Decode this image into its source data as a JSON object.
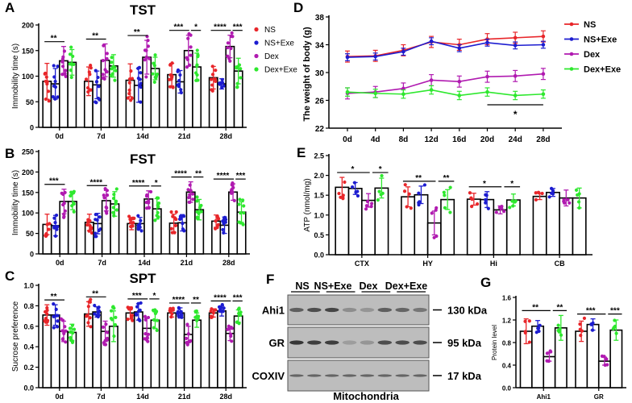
{
  "groups": [
    "NS",
    "NS+Exe",
    "Dex",
    "Dex+Exe"
  ],
  "colors": {
    "NS": "#e8262a",
    "NS+Exe": "#1c1cd0",
    "Dex": "#b01ab0",
    "Dex+Exe": "#2ee82e"
  },
  "panel_letters": [
    "A",
    "B",
    "C",
    "D",
    "E",
    "F",
    "G"
  ],
  "chart_data": [
    {
      "id": "A",
      "type": "bar",
      "title": "TST",
      "xlabel": "",
      "ylabel": "Immobility time (s)",
      "ylim": [
        0,
        200
      ],
      "yticks": [
        0,
        50,
        100,
        150,
        200
      ],
      "categories": [
        "0d",
        "7d",
        "14d",
        "21d",
        "28d"
      ],
      "legend": "right",
      "series": [
        {
          "name": "NS",
          "values": [
            90,
            90,
            92,
            103,
            97
          ],
          "sd": [
            35,
            28,
            32,
            22,
            22
          ]
        },
        {
          "name": "NS+Exe",
          "values": [
            85,
            83,
            82,
            89,
            85
          ],
          "sd": [
            30,
            27,
            33,
            22,
            10
          ]
        },
        {
          "name": "Dex",
          "values": [
            130,
            131,
            137,
            150,
            158
          ],
          "sd": [
            28,
            32,
            33,
            30,
            22
          ]
        },
        {
          "name": "Dex+Exe",
          "values": [
            127,
            120,
            115,
            118,
            110
          ],
          "sd": [
            25,
            22,
            22,
            27,
            25
          ]
        }
      ],
      "significance": [
        [
          "**",
          ""
        ],
        [
          "**",
          ""
        ],
        [
          "**",
          ""
        ],
        [
          "***",
          "*"
        ],
        [
          "****",
          "***"
        ]
      ]
    },
    {
      "id": "B",
      "type": "bar",
      "title": "FST",
      "xlabel": "",
      "ylabel": "Immobility time (s)",
      "ylim": [
        0,
        250
      ],
      "yticks": [
        0,
        50,
        100,
        150,
        200,
        250
      ],
      "categories": [
        "0d",
        "7d",
        "14d",
        "21d",
        "28d"
      ],
      "series": [
        {
          "name": "NS",
          "values": [
            72,
            77,
            74,
            75,
            80
          ],
          "sd": [
            25,
            20,
            15,
            22,
            15
          ]
        },
        {
          "name": "NS+Exe",
          "values": [
            69,
            74,
            74,
            76,
            70
          ],
          "sd": [
            25,
            25,
            15,
            20,
            20
          ]
        },
        {
          "name": "Dex",
          "values": [
            128,
            130,
            134,
            151,
            151
          ],
          "sd": [
            30,
            25,
            20,
            25,
            20
          ]
        },
        {
          "name": "Dex+Exe",
          "values": [
            128,
            122,
            110,
            108,
            102
          ],
          "sd": [
            20,
            30,
            25,
            25,
            25
          ]
        }
      ],
      "significance": [
        [
          "***",
          ""
        ],
        [
          "****",
          ""
        ],
        [
          "****",
          "*"
        ],
        [
          "****",
          "**"
        ],
        [
          "****",
          "***"
        ]
      ]
    },
    {
      "id": "C",
      "type": "bar",
      "title": "SPT",
      "xlabel": "",
      "ylabel": "Sucrose preference",
      "ylim": [
        0,
        1.0
      ],
      "yticks": [
        "0.0",
        "0.2",
        "0.4",
        "0.6",
        "0.8",
        "1.0"
      ],
      "categories": [
        "0d",
        "7d",
        "14d",
        "21d",
        "28d"
      ],
      "series": [
        {
          "name": "NS",
          "values": [
            0.71,
            0.72,
            0.73,
            0.73,
            0.73
          ],
          "sd": [
            0.1,
            0.12,
            0.06,
            0.04,
            0.04
          ]
        },
        {
          "name": "NS+Exe",
          "values": [
            0.71,
            0.74,
            0.74,
            0.73,
            0.75
          ],
          "sd": [
            0.1,
            0.05,
            0.08,
            0.05,
            0.05
          ]
        },
        {
          "name": "Dex",
          "values": [
            0.55,
            0.55,
            0.58,
            0.52,
            0.53
          ],
          "sd": [
            0.1,
            0.1,
            0.1,
            0.08,
            0.07
          ]
        },
        {
          "name": "Dex+Exe",
          "values": [
            0.54,
            0.6,
            0.66,
            0.66,
            0.7
          ],
          "sd": [
            0.08,
            0.15,
            0.08,
            0.07,
            0.06
          ]
        }
      ],
      "significance": [
        [
          "**",
          ""
        ],
        [
          "**",
          ""
        ],
        [
          "***",
          "*"
        ],
        [
          "****",
          "**"
        ],
        [
          "****",
          "***"
        ]
      ]
    },
    {
      "id": "D",
      "type": "line",
      "title": "",
      "xlabel": "",
      "ylabel": "The weight of body (g)",
      "ylim": [
        22,
        38
      ],
      "yticks": [
        22,
        26,
        30,
        34,
        38
      ],
      "x": [
        "0d",
        "4d",
        "8d",
        "12d",
        "16d",
        "20d",
        "24d",
        "28d"
      ],
      "legend": "right",
      "series": [
        {
          "name": "NS",
          "values": [
            32.3,
            32.4,
            33.2,
            34.4,
            34.0,
            34.8,
            35.0,
            35.2
          ],
          "sd": 0.8
        },
        {
          "name": "NS+Exe",
          "values": [
            32.2,
            32.3,
            33.0,
            34.5,
            33.5,
            34.3,
            33.9,
            34.0
          ],
          "sd": 0.5
        },
        {
          "name": "Dex",
          "values": [
            27.0,
            27.2,
            27.7,
            28.9,
            28.7,
            29.4,
            29.5,
            29.8
          ],
          "sd": 0.8
        },
        {
          "name": "Dex+Exe",
          "values": [
            27.2,
            27.0,
            26.9,
            27.5,
            26.7,
            27.2,
            26.7,
            26.9
          ],
          "sd": 0.6
        }
      ],
      "significance": {
        "from": "20d",
        "to": "28d",
        "label": "*"
      }
    },
    {
      "id": "E",
      "type": "bar",
      "title": "",
      "xlabel": "",
      "ylabel": "ATP (nmol/mg)",
      "ylim": [
        0,
        2.5
      ],
      "yticks": [
        "0.0",
        "0.5",
        "1.0",
        "1.5",
        "2.0",
        "2.5"
      ],
      "categories": [
        "CTX",
        "HY",
        "Hi",
        "CB"
      ],
      "series": [
        {
          "name": "NS",
          "values": [
            1.7,
            1.46,
            1.4,
            1.47
          ],
          "sd": [
            0.25,
            0.25,
            0.15,
            0.08
          ]
        },
        {
          "name": "NS+Exe",
          "values": [
            1.67,
            1.51,
            1.39,
            1.57
          ],
          "sd": [
            0.15,
            0.22,
            0.2,
            0.1
          ]
        },
        {
          "name": "Dex",
          "values": [
            1.37,
            0.8,
            1.13,
            1.43
          ],
          "sd": [
            0.17,
            0.3,
            0.1,
            0.2
          ]
        },
        {
          "name": "Dex+Exe",
          "values": [
            1.68,
            1.39,
            1.38,
            1.43
          ],
          "sd": [
            0.25,
            0.25,
            0.15,
            0.25
          ]
        }
      ],
      "significance": [
        [
          "*",
          "*"
        ],
        [
          "**",
          "**"
        ],
        [
          "*",
          "*"
        ],
        [
          "",
          ""
        ]
      ]
    },
    {
      "id": "G",
      "type": "bar",
      "title": "",
      "xlabel": "",
      "ylabel": "Protein level",
      "ylim": [
        0,
        1.6
      ],
      "yticks": [
        "0.0",
        "0.4",
        "0.8",
        "1.2",
        "1.6"
      ],
      "categories": [
        "Ahi1",
        "GR"
      ],
      "series": [
        {
          "name": "NS",
          "values": [
            1.0,
            1.0
          ],
          "sd": [
            0.22,
            0.18
          ]
        },
        {
          "name": "NS+Exe",
          "values": [
            1.09,
            1.12
          ],
          "sd": [
            0.1,
            0.1
          ]
        },
        {
          "name": "Dex",
          "values": [
            0.55,
            0.47
          ],
          "sd": [
            0.08,
            0.07
          ]
        },
        {
          "name": "Dex+Exe",
          "values": [
            1.06,
            1.02
          ],
          "sd": [
            0.22,
            0.18
          ]
        }
      ],
      "significance": [
        [
          "**",
          "**"
        ],
        [
          "***",
          "***"
        ]
      ]
    }
  ],
  "blot": {
    "lane_groups": [
      "NS",
      "NS+Exe",
      "Dex",
      "Dex+Exe"
    ],
    "rows": [
      {
        "protein": "Ahi1",
        "size": "130 kDa"
      },
      {
        "protein": "GR",
        "size": "95 kDa"
      },
      {
        "protein": "COXIV",
        "size": "17 kDa"
      }
    ],
    "caption": "Mitochondria"
  }
}
